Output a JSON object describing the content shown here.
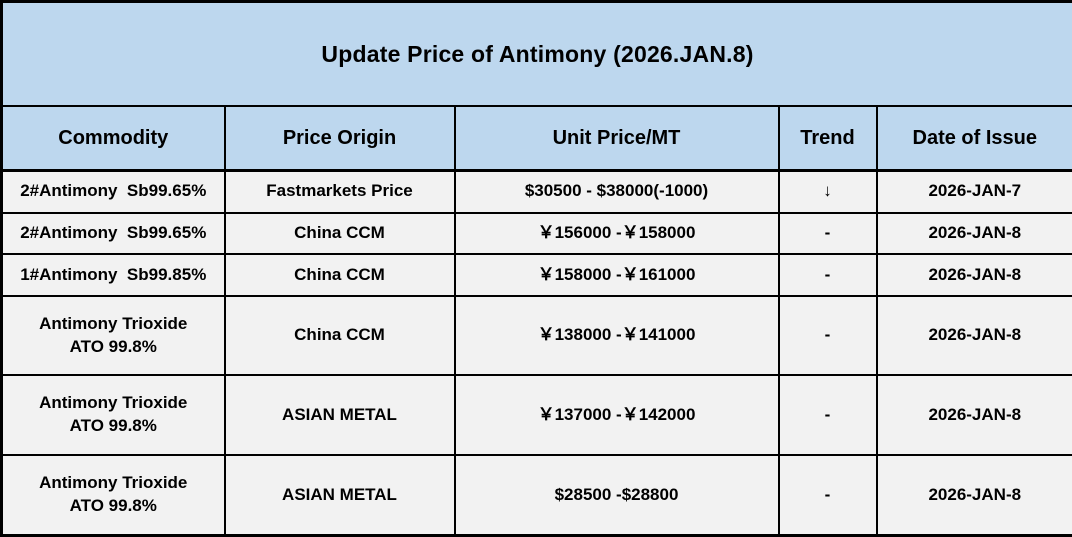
{
  "title": "Update Price of Antimony (2026.JAN.8)",
  "colors": {
    "header_bg": "#BDD7EE",
    "row_bg": "#F2F2F2",
    "border": "#000000",
    "text": "#000000"
  },
  "table": {
    "headers": [
      "Commodity",
      "Price Origin",
      "Unit Price/MT",
      "Trend",
      "Date of Issue"
    ],
    "rows": [
      {
        "commodity": "2#Antimony  Sb99.65%",
        "price_origin": "Fastmarkets Price",
        "unit_price": "$30500 - $38000(-1000)",
        "trend": "↓",
        "date_of_issue": "2026-JAN-7"
      },
      {
        "commodity": "2#Antimony  Sb99.65%",
        "price_origin": "China CCM",
        "unit_price": "￥156000 -￥158000",
        "trend": "-",
        "date_of_issue": "2026-JAN-8"
      },
      {
        "commodity": "1#Antimony  Sb99.85%",
        "price_origin": "China CCM",
        "unit_price": "￥158000 -￥161000",
        "trend": "-",
        "date_of_issue": "2026-JAN-8"
      },
      {
        "commodity": "Antimony Trioxide\nATO 99.8%",
        "price_origin": "China CCM",
        "unit_price": "￥138000 -￥141000",
        "trend": "-",
        "date_of_issue": "2026-JAN-8"
      },
      {
        "commodity": "Antimony Trioxide\nATO 99.8%",
        "price_origin": "ASIAN METAL",
        "unit_price": "￥137000 -￥142000",
        "trend": "-",
        "date_of_issue": "2026-JAN-8"
      },
      {
        "commodity": "Antimony Trioxide\nATO 99.8%",
        "price_origin": "ASIAN METAL",
        "unit_price": "$28500 -$28800",
        "trend": "-",
        "date_of_issue": "2026-JAN-8"
      }
    ]
  }
}
